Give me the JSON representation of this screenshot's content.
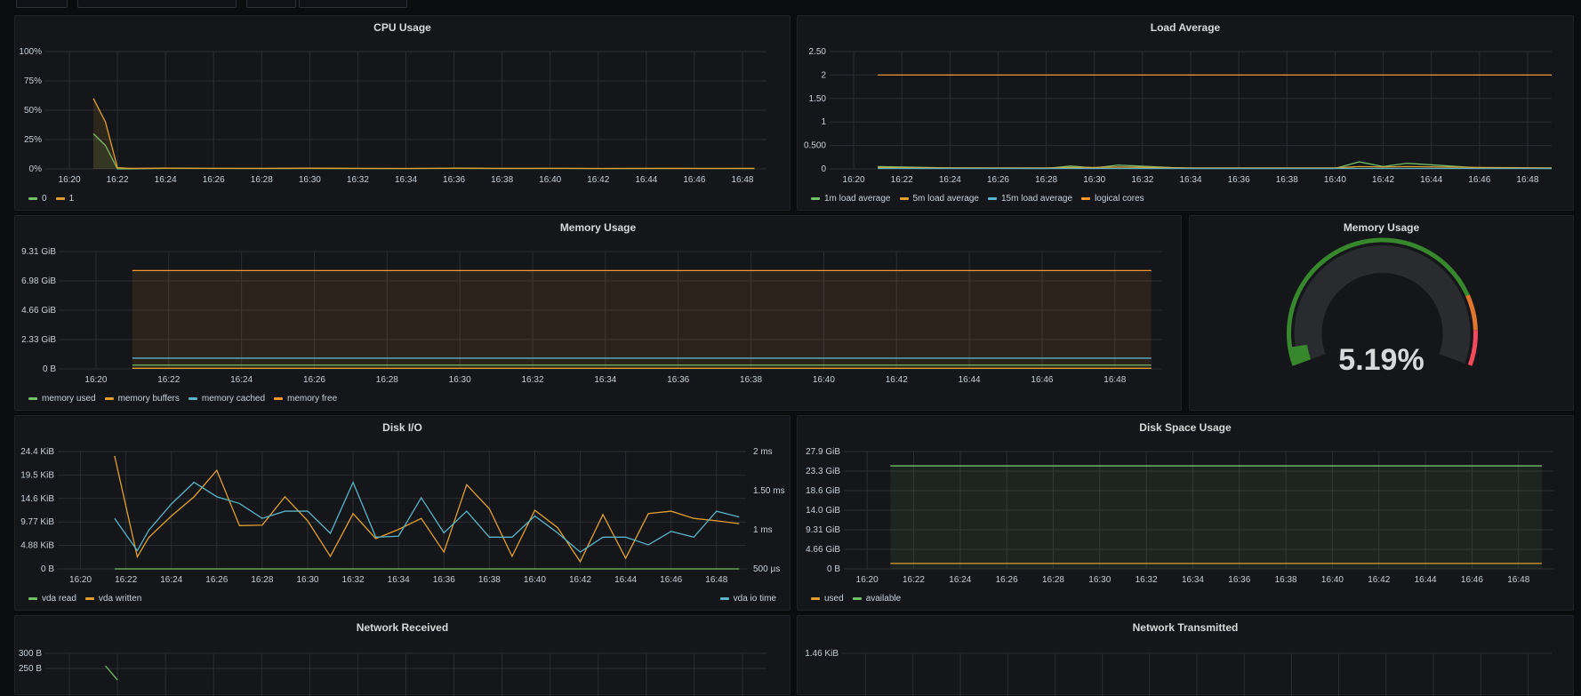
{
  "colors": {
    "green": "#73bf69",
    "yellow": "#fade2a",
    "orange": "#ff9830",
    "amber": "#e0a030",
    "blue": "#5ab4c8",
    "red": "#f2495c",
    "grid": "#2c2e33",
    "text": "#c7d0d9"
  },
  "time_ticks": [
    "16:20",
    "16:22",
    "16:24",
    "16:26",
    "16:28",
    "16:30",
    "16:32",
    "16:34",
    "16:36",
    "16:38",
    "16:40",
    "16:42",
    "16:44",
    "16:46",
    "16:48"
  ],
  "panels": {
    "cpu": {
      "title": "CPU Usage",
      "y_ticks": [
        "100%",
        "75%",
        "50%",
        "25%",
        "0%"
      ],
      "legend": [
        {
          "label": "0",
          "color": "#73bf69"
        },
        {
          "label": "1",
          "color": "#e0a030"
        }
      ]
    },
    "load": {
      "title": "Load Average",
      "y_ticks": [
        "2.50",
        "2",
        "1.50",
        "1",
        "0.500",
        "0"
      ],
      "legend": [
        {
          "label": "1m load average",
          "color": "#73bf69"
        },
        {
          "label": "5m load average",
          "color": "#e0a030"
        },
        {
          "label": "15m load average",
          "color": "#5ab4c8"
        },
        {
          "label": "logical cores",
          "color": "#ff9830"
        }
      ]
    },
    "memory": {
      "title": "Memory Usage",
      "y_ticks": [
        "9.31 GiB",
        "6.98 GiB",
        "4.66 GiB",
        "2.33 GiB",
        "0 B"
      ],
      "legend": [
        {
          "label": "memory used",
          "color": "#73bf69"
        },
        {
          "label": "memory buffers",
          "color": "#e0a030"
        },
        {
          "label": "memory cached",
          "color": "#5ab4c8"
        },
        {
          "label": "memory free",
          "color": "#ff9830"
        }
      ]
    },
    "memory_gauge": {
      "title": "Memory Usage",
      "value": "5.19%",
      "fraction": 0.0519
    },
    "disk_io": {
      "title": "Disk I/O",
      "y_ticks": [
        "24.4 KiB",
        "19.5 KiB",
        "14.6 KiB",
        "9.77 KiB",
        "4.88 KiB",
        "0 B"
      ],
      "y2_ticks": [
        "2 ms",
        "1.50 ms",
        "1 ms",
        "500 µs"
      ],
      "legend": [
        {
          "label": "vda read",
          "color": "#73bf69"
        },
        {
          "label": "vda written",
          "color": "#e0a030"
        }
      ],
      "legend_right": [
        {
          "label": "vda io time",
          "color": "#5ab4c8"
        }
      ]
    },
    "disk_space": {
      "title": "Disk Space Usage",
      "y_ticks": [
        "27.9 GiB",
        "23.3 GiB",
        "18.6 GiB",
        "14.0 GiB",
        "9.31 GiB",
        "4.66 GiB",
        "0 B"
      ],
      "legend": [
        {
          "label": "used",
          "color": "#e0a030"
        },
        {
          "label": "available",
          "color": "#73bf69"
        }
      ]
    },
    "net_rx": {
      "title": "Network Received",
      "y_ticks": [
        "300 B",
        "250 B"
      ]
    },
    "net_tx": {
      "title": "Network Transmitted",
      "y_ticks": [
        "1.46 KiB"
      ]
    }
  },
  "chart_data": [
    {
      "type": "line",
      "title": "CPU Usage",
      "ylim": [
        0,
        100
      ],
      "x": [
        "16:21",
        "16:21.5",
        "16:22",
        "16:22.5",
        "16:24",
        "16:26",
        "16:28",
        "16:30",
        "16:32",
        "16:34",
        "16:36",
        "16:38",
        "16:40",
        "16:42",
        "16:44",
        "16:46",
        "16:48.5"
      ],
      "series": [
        {
          "name": "0",
          "values": [
            30,
            20,
            0,
            0,
            0.5,
            0.4,
            0.3,
            0.4,
            0.3,
            0.3,
            0.5,
            0.3,
            0.4,
            0.3,
            0.3,
            0.4,
            0.3
          ]
        },
        {
          "name": "1",
          "values": [
            60,
            40,
            1,
            0.5,
            0.6,
            0.5,
            0.5,
            0.6,
            0.5,
            0.4,
            0.6,
            0.5,
            0.5,
            0.4,
            0.5,
            0.4,
            0.5
          ]
        }
      ]
    },
    {
      "type": "line",
      "title": "Load Average",
      "ylim": [
        0,
        2.5
      ],
      "x": [
        "16:21",
        "16:24",
        "16:28",
        "16:29",
        "16:30",
        "16:31",
        "16:34",
        "16:40",
        "16:41",
        "16:42",
        "16:43",
        "16:46",
        "16:49"
      ],
      "series": [
        {
          "name": "1m load average",
          "values": [
            0.05,
            0.02,
            0.01,
            0.06,
            0.02,
            0.08,
            0.01,
            0.01,
            0.15,
            0.05,
            0.12,
            0.02,
            0.01
          ]
        },
        {
          "name": "5m load average",
          "values": [
            0.03,
            0.02,
            0.02,
            0.03,
            0.03,
            0.04,
            0.02,
            0.02,
            0.05,
            0.04,
            0.05,
            0.03,
            0.02
          ]
        },
        {
          "name": "15m load average",
          "values": [
            0.01,
            0.01,
            0.01,
            0.01,
            0.01,
            0.01,
            0.01,
            0.01,
            0.01,
            0.01,
            0.01,
            0.01,
            0.01
          ]
        },
        {
          "name": "logical cores",
          "values": [
            2,
            2,
            2,
            2,
            2,
            2,
            2,
            2,
            2,
            2,
            2,
            2,
            2
          ]
        }
      ]
    },
    {
      "type": "area",
      "title": "Memory Usage",
      "ylim": [
        0,
        9.31
      ],
      "x": [
        "16:21",
        "16:49"
      ],
      "series": [
        {
          "name": "memory used",
          "values": [
            0.3,
            0.3
          ]
        },
        {
          "name": "memory buffers",
          "values": [
            0.05,
            0.05
          ]
        },
        {
          "name": "memory cached",
          "values": [
            0.85,
            0.85
          ]
        },
        {
          "name": "memory free",
          "values": [
            7.8,
            7.8
          ]
        }
      ]
    },
    {
      "type": "line",
      "title": "Disk I/O",
      "ylim": [
        0,
        24.4
      ],
      "x": [
        "16:21.5",
        "16:22.5",
        "16:23",
        "16:24",
        "16:25",
        "16:26",
        "16:27",
        "16:28",
        "16:29",
        "16:30",
        "16:31",
        "16:32",
        "16:33",
        "16:34",
        "16:35",
        "16:36",
        "16:37",
        "16:38",
        "16:39",
        "16:40",
        "16:41",
        "16:42",
        "16:43",
        "16:44",
        "16:45",
        "16:46",
        "16:47",
        "16:48",
        "16:49"
      ],
      "series": [
        {
          "name": "vda read",
          "values": [
            0,
            0,
            0,
            0,
            0,
            0,
            0,
            0,
            0,
            0,
            0,
            0,
            0,
            0,
            0,
            0,
            0,
            0,
            0,
            0,
            0,
            0,
            0,
            0,
            0,
            0,
            0,
            0,
            0
          ]
        },
        {
          "name": "vda written",
          "values": [
            23.5,
            2.5,
            6.5,
            11,
            15,
            20.5,
            9,
            9.1,
            15,
            10,
            2.6,
            11.5,
            6.3,
            8.2,
            10.5,
            3.5,
            17.5,
            12.5,
            2.6,
            12.2,
            8.6,
            1.5,
            11.3,
            2.2,
            11.5,
            12,
            10.5,
            10,
            9.4
          ]
        },
        {
          "name": "vda io time",
          "values": [
            10.5,
            3.8,
            8,
            13.5,
            18,
            15,
            13.6,
            10.5,
            12,
            12,
            7.4,
            18,
            6.6,
            6.8,
            14.8,
            7.5,
            12,
            6.6,
            6.6,
            11,
            7.5,
            3.5,
            6.6,
            6.6,
            5,
            7.8,
            6.6,
            12,
            10.8
          ]
        }
      ]
    },
    {
      "type": "area",
      "title": "Disk Space Usage",
      "ylim": [
        0,
        27.9
      ],
      "x": [
        "16:21",
        "16:49"
      ],
      "series": [
        {
          "name": "used",
          "values": [
            1.3,
            1.3
          ]
        },
        {
          "name": "available",
          "values": [
            24.5,
            24.5
          ]
        }
      ]
    }
  ]
}
